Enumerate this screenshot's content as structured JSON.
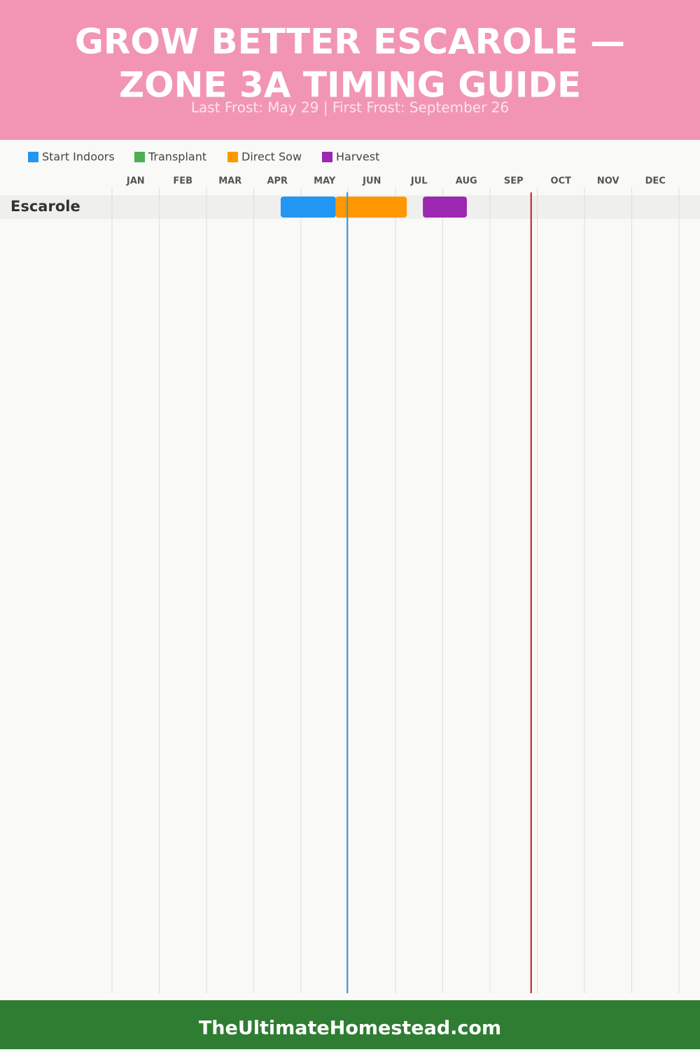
{
  "chart_data": {
    "type": "timeline",
    "title": [
      "GROW BETTER ESCAROLE —",
      "ZONE 3A TIMING GUIDE"
    ],
    "subtitle": "Last Frost: May 29 | First Frost: September 26",
    "months": [
      "JAN",
      "FEB",
      "MAR",
      "APR",
      "MAY",
      "JUN",
      "JUL",
      "AUG",
      "SEP",
      "OCT",
      "NOV",
      "DEC"
    ],
    "xlim": [
      0,
      12
    ],
    "categories": [
      "Escarole"
    ],
    "series": [
      {
        "name": "Start Indoors",
        "color": "#2196f3",
        "values": [
          [
            3.57,
            4.74
          ]
        ]
      },
      {
        "name": "Transplant",
        "color": "#4caf50",
        "values": [
          null
        ]
      },
      {
        "name": "Direct Sow",
        "color": "#ff9800",
        "values": [
          [
            4.73,
            6.24
          ]
        ]
      },
      {
        "name": "Harvest",
        "color": "#9c27b0",
        "values": [
          [
            6.58,
            7.51
          ]
        ]
      }
    ],
    "frost_lines": [
      {
        "value": 4.98,
        "color": "#3498db"
      },
      {
        "value": 8.87,
        "color": "#b22222"
      }
    ],
    "grid": true
  },
  "footer": "TheUltimateHomestead.com"
}
